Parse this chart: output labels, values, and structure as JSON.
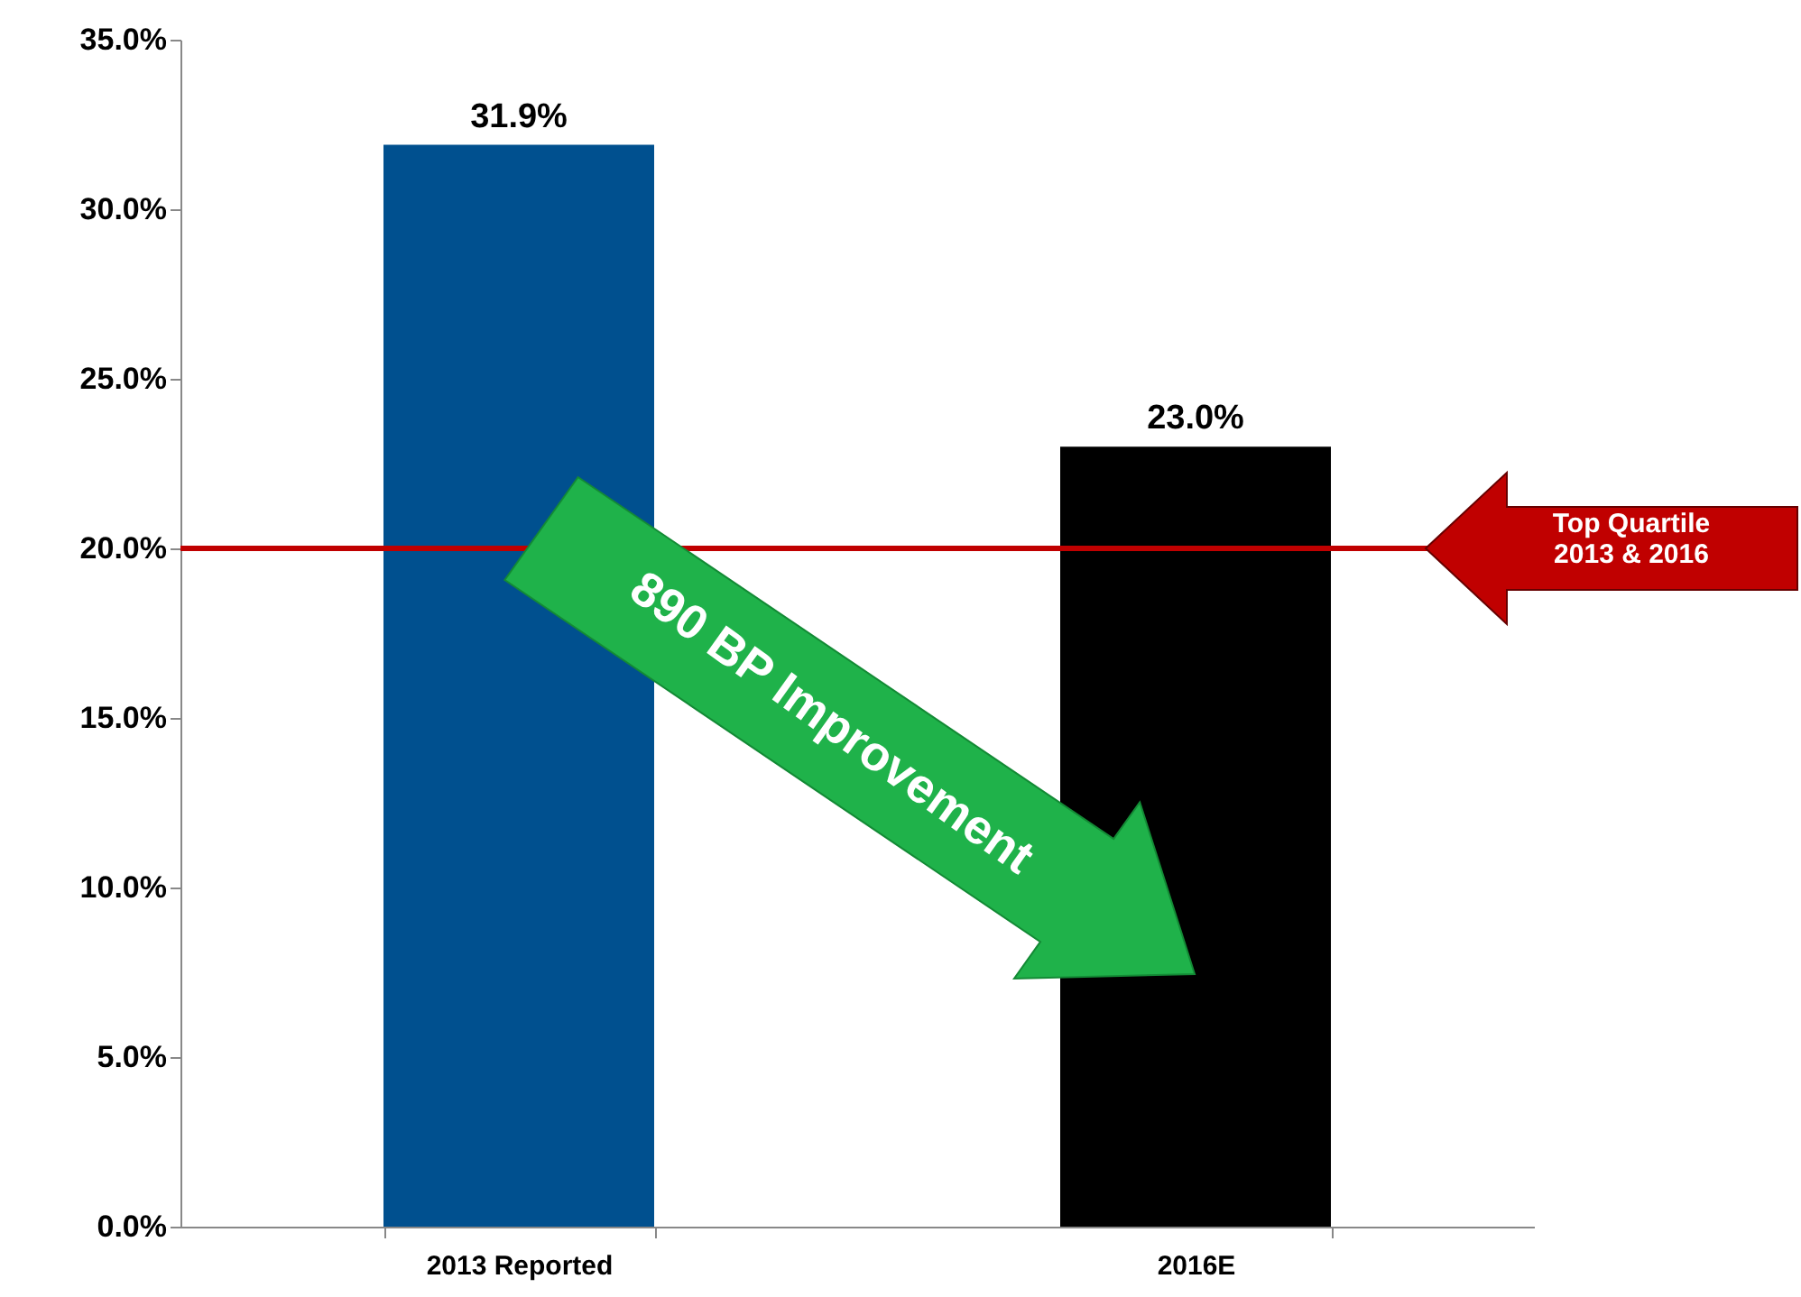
{
  "chart_data": {
    "type": "bar",
    "categories": [
      "2013 Reported",
      "2016E"
    ],
    "values": [
      31.9,
      23.0
    ],
    "colors": [
      "#00508f",
      "#000000"
    ],
    "value_labels": [
      "31.9%",
      "23.0%"
    ],
    "ylim": [
      0,
      35
    ],
    "yticks": [
      {
        "value": 0,
        "label": "0.0%"
      },
      {
        "value": 5,
        "label": "5.0%"
      },
      {
        "value": 10,
        "label": "10.0%"
      },
      {
        "value": 15,
        "label": "15.0%"
      },
      {
        "value": 20,
        "label": "20.0%"
      },
      {
        "value": 25,
        "label": "25.0%"
      },
      {
        "value": 30,
        "label": "30.0%"
      },
      {
        "value": 35,
        "label": "35.0%"
      }
    ],
    "ref_lines": [
      {
        "axis": "y",
        "value": 20,
        "label": "Top Quartile 2013 & 2016",
        "color": "#c00000"
      }
    ],
    "annotations": [
      "890 BP Improvement"
    ]
  }
}
